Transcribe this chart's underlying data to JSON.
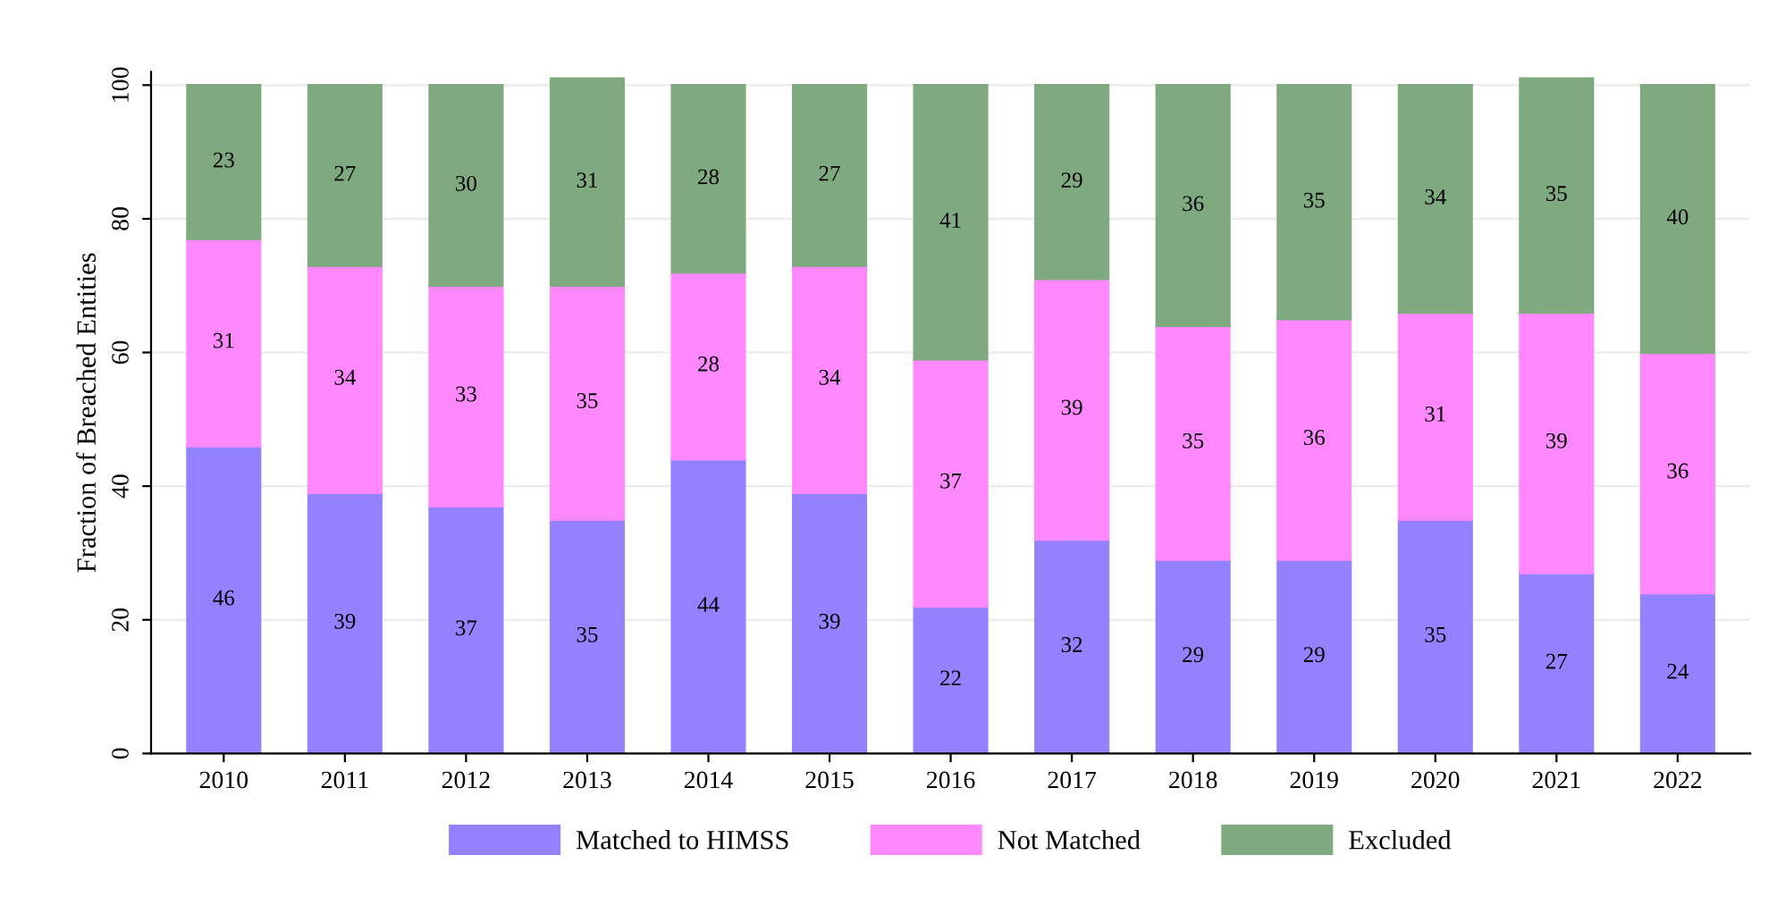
{
  "chart_data": {
    "type": "bar",
    "stacked": true,
    "ylabel": "Fraction of Breached Entities",
    "categories": [
      "2010",
      "2011",
      "2012",
      "2013",
      "2014",
      "2015",
      "2016",
      "2017",
      "2018",
      "2019",
      "2020",
      "2021",
      "2022"
    ],
    "series": [
      {
        "name": "Matched to HIMSS",
        "color": "#9381ff",
        "values": [
          46,
          39,
          37,
          35,
          44,
          39,
          22,
          32,
          29,
          29,
          35,
          27,
          24
        ]
      },
      {
        "name": "Not Matched",
        "color": "#ff88ff",
        "values": [
          31,
          34,
          33,
          35,
          28,
          34,
          37,
          39,
          35,
          36,
          31,
          39,
          36
        ]
      },
      {
        "name": "Excluded",
        "color": "#7faa7f",
        "values": [
          23,
          27,
          30,
          31,
          28,
          27,
          41,
          29,
          36,
          35,
          34,
          35,
          40
        ]
      }
    ],
    "ylim": [
      0,
      102
    ],
    "yticks": [
      0,
      20,
      40,
      60,
      80,
      100
    ],
    "grid": "y",
    "legend": "bottom",
    "data_labels": true
  }
}
